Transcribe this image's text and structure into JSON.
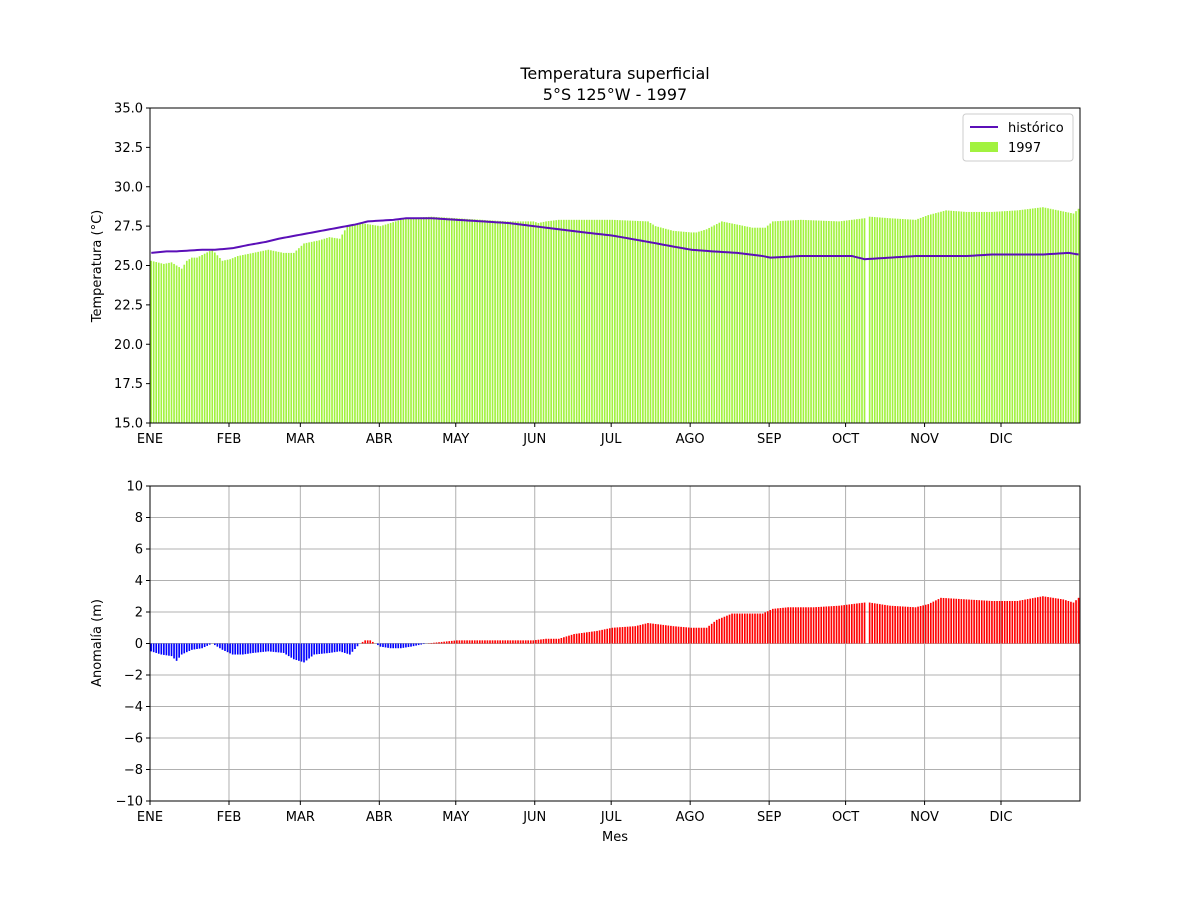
{
  "figure": {
    "title_line1": "Temperatura superficial",
    "title_line2": "5°S 125°W - 1997"
  },
  "chart_data": [
    {
      "type": "bar",
      "ylabel": "Temperatura (°C)",
      "xlabel": "",
      "ylim": [
        15.0,
        35.0
      ],
      "yticks": [
        "15.0",
        "17.5",
        "20.0",
        "22.5",
        "25.0",
        "27.5",
        "30.0",
        "32.5",
        "35.0"
      ],
      "grid": false,
      "legend_placement": "top-right",
      "month_labels": [
        "ENE",
        "FEB",
        "MAR",
        "ABR",
        "MAY",
        "JUN",
        "JUL",
        "AGO",
        "SEP",
        "OCT",
        "NOV",
        "DIC"
      ],
      "month_start_days": [
        0,
        31,
        59,
        90,
        120,
        151,
        181,
        212,
        243,
        273,
        304,
        334
      ],
      "days_in_year": 365,
      "bar_series": {
        "name": "1997",
        "color": "#a2f23f",
        "anchor_days": [
          0,
          5,
          8,
          12,
          14,
          16,
          18,
          24,
          28,
          31,
          34,
          40,
          46,
          52,
          56,
          60,
          66,
          70,
          74,
          77,
          82,
          90,
          100,
          110,
          120,
          130,
          140,
          150,
          152,
          155,
          160,
          166,
          181,
          195,
          198,
          205,
          212,
          214,
          218,
          224,
          230,
          236,
          241,
          244,
          255,
          270,
          280,
          281,
          282,
          290,
          300,
          305,
          312,
          320,
          330,
          340,
          350,
          362,
          364
        ],
        "anchor_values": [
          25.3,
          25.1,
          25.2,
          24.8,
          25.3,
          25.5,
          25.5,
          26.0,
          25.3,
          25.4,
          25.6,
          25.8,
          26.0,
          25.8,
          25.8,
          26.4,
          26.6,
          26.8,
          26.7,
          27.5,
          27.7,
          27.5,
          28.0,
          28.1,
          28.0,
          27.9,
          27.8,
          27.8,
          27.7,
          27.8,
          27.9,
          27.9,
          27.9,
          27.8,
          27.5,
          27.2,
          27.1,
          27.1,
          27.3,
          27.8,
          27.6,
          27.4,
          27.4,
          27.8,
          27.9,
          27.8,
          28.0,
          null,
          28.1,
          28.0,
          27.9,
          28.2,
          28.5,
          28.4,
          28.4,
          28.5,
          28.7,
          28.3,
          28.6
        ]
      },
      "line_series": {
        "name": "histórico",
        "color": "#5b0fb8",
        "anchor_days": [
          0,
          6,
          10,
          20,
          25,
          32,
          38,
          45,
          50,
          60,
          70,
          80,
          85,
          95,
          100,
          110,
          120,
          130,
          140,
          150,
          160,
          170,
          181,
          195,
          205,
          212,
          220,
          230,
          240,
          243,
          255,
          265,
          275,
          280,
          290,
          300,
          310,
          320,
          330,
          340,
          350,
          360,
          364
        ],
        "anchor_values": [
          25.8,
          25.9,
          25.9,
          26.0,
          26.0,
          26.1,
          26.3,
          26.5,
          26.7,
          27.0,
          27.3,
          27.6,
          27.8,
          27.9,
          28.0,
          28.0,
          27.9,
          27.8,
          27.7,
          27.5,
          27.3,
          27.1,
          26.9,
          26.5,
          26.2,
          26.0,
          25.9,
          25.8,
          25.6,
          25.5,
          25.6,
          25.6,
          25.6,
          25.4,
          25.5,
          25.6,
          25.6,
          25.6,
          25.7,
          25.7,
          25.7,
          25.8,
          25.7
        ]
      }
    },
    {
      "type": "bar",
      "ylabel": "Anomalía (m)",
      "xlabel": "Mes",
      "ylim": [
        -10,
        10
      ],
      "yticks": [
        "−10",
        "−8",
        "−6",
        "−4",
        "−2",
        "0",
        "2",
        "4",
        "6",
        "8",
        "10"
      ],
      "grid": true,
      "month_labels": [
        "ENE",
        "FEB",
        "MAR",
        "ABR",
        "MAY",
        "JUN",
        "JUL",
        "AGO",
        "SEP",
        "OCT",
        "NOV",
        "DIC"
      ],
      "month_start_days": [
        0,
        31,
        59,
        90,
        120,
        151,
        181,
        212,
        243,
        273,
        304,
        334
      ],
      "days_in_year": 365,
      "positive_color": "#ff0000",
      "negative_color": "#0000ff",
      "bar_series": {
        "name": "anomalía",
        "anchor_days": [
          0,
          4,
          8,
          10,
          12,
          16,
          20,
          24,
          28,
          32,
          36,
          40,
          46,
          52,
          56,
          60,
          64,
          70,
          74,
          78,
          82,
          84,
          86,
          90,
          94,
          98,
          102,
          108,
          114,
          120,
          130,
          140,
          150,
          155,
          160,
          166,
          175,
          181,
          190,
          195,
          200,
          205,
          212,
          218,
          222,
          228,
          235,
          240,
          244,
          250,
          260,
          270,
          280,
          281,
          282,
          290,
          300,
          305,
          310,
          320,
          330,
          340,
          350,
          358,
          362,
          364
        ],
        "anchor_values": [
          -0.5,
          -0.7,
          -0.8,
          -1.1,
          -0.7,
          -0.4,
          -0.3,
          0.0,
          -0.4,
          -0.7,
          -0.7,
          -0.6,
          -0.5,
          -0.6,
          -1.0,
          -1.2,
          -0.7,
          -0.6,
          -0.5,
          -0.7,
          0.0,
          0.2,
          0.2,
          -0.2,
          -0.3,
          -0.3,
          -0.2,
          0.0,
          0.1,
          0.2,
          0.2,
          0.2,
          0.2,
          0.3,
          0.3,
          0.6,
          0.8,
          1.0,
          1.1,
          1.3,
          1.2,
          1.1,
          1.0,
          1.0,
          1.5,
          1.9,
          1.9,
          1.9,
          2.2,
          2.3,
          2.3,
          2.4,
          2.6,
          null,
          2.6,
          2.4,
          2.3,
          2.5,
          2.9,
          2.8,
          2.7,
          2.7,
          3.0,
          2.8,
          2.6,
          2.9
        ]
      }
    }
  ]
}
